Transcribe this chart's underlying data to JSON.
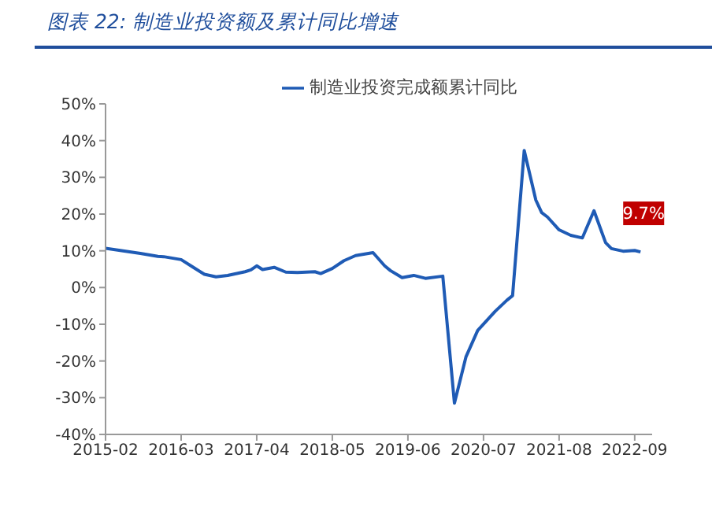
{
  "chart_data": {
    "type": "line",
    "title": "图表 22: 制造业投资额及累计同比增速",
    "x": [
      "2015-02",
      "2015-05",
      "2015-08",
      "2015-11",
      "2015-12",
      "2016-03",
      "2016-05",
      "2016-07",
      "2016-09",
      "2016-11",
      "2017-02",
      "2017-03",
      "2017-04",
      "2017-05",
      "2017-07",
      "2017-09",
      "2017-11",
      "2018-02",
      "2018-03",
      "2018-05",
      "2018-07",
      "2018-09",
      "2018-12",
      "2019-02",
      "2019-03",
      "2019-05",
      "2019-07",
      "2019-09",
      "2019-12",
      "2020-02",
      "2020-04",
      "2020-06",
      "2020-09",
      "2020-11",
      "2020-12",
      "2021-02",
      "2021-04",
      "2021-05",
      "2021-06",
      "2021-08",
      "2021-10",
      "2021-12",
      "2022-02",
      "2022-04",
      "2022-05",
      "2022-07",
      "2022-09",
      "2022-10"
    ],
    "series": [
      {
        "name": "制造业投资完成额累计同比",
        "color": "#1f5bb5",
        "values": [
          10.7,
          10.0,
          9.3,
          8.5,
          8.4,
          7.6,
          5.6,
          3.6,
          2.9,
          3.3,
          4.3,
          4.8,
          5.9,
          4.9,
          5.5,
          4.2,
          4.1,
          4.3,
          3.8,
          5.2,
          7.3,
          8.7,
          9.5,
          5.9,
          4.6,
          2.7,
          3.3,
          2.5,
          3.1,
          -31.5,
          -18.8,
          -11.7,
          -6.5,
          -3.5,
          -2.2,
          37.3,
          23.8,
          20.4,
          19.2,
          15.7,
          14.2,
          13.5,
          20.9,
          12.2,
          10.6,
          9.9,
          10.1,
          9.7
        ],
        "value_labels": [
          null,
          null,
          null,
          null,
          null,
          null,
          null,
          null,
          null,
          null,
          null,
          null,
          null,
          null,
          null,
          null,
          null,
          null,
          null,
          null,
          null,
          null,
          null,
          null,
          null,
          null,
          null,
          null,
          null,
          null,
          null,
          null,
          null,
          null,
          null,
          null,
          null,
          null,
          null,
          null,
          null,
          null,
          null,
          null,
          null,
          null,
          null,
          "9.7%"
        ]
      }
    ],
    "xlim": [
      "2015-02",
      "2022-12"
    ],
    "xticks": [
      "2015-02",
      "2016-03",
      "2017-04",
      "2018-05",
      "2019-06",
      "2020-07",
      "2021-08",
      "2022-09"
    ],
    "ylim": [
      -40,
      50
    ],
    "yticks": [
      {
        "value": -40,
        "label": "-40%"
      },
      {
        "value": -30,
        "label": "-30%"
      },
      {
        "value": -20,
        "label": "-20%"
      },
      {
        "value": -10,
        "label": "-10%"
      },
      {
        "value": 0,
        "label": "0%"
      },
      {
        "value": 10,
        "label": "10%"
      },
      {
        "value": 20,
        "label": "20%"
      },
      {
        "value": 30,
        "label": "30%"
      },
      {
        "value": 40,
        "label": "40%"
      },
      {
        "value": 50,
        "label": "50%"
      }
    ],
    "legend": "top",
    "grid": false,
    "marker": "none",
    "line_style": "solid"
  }
}
